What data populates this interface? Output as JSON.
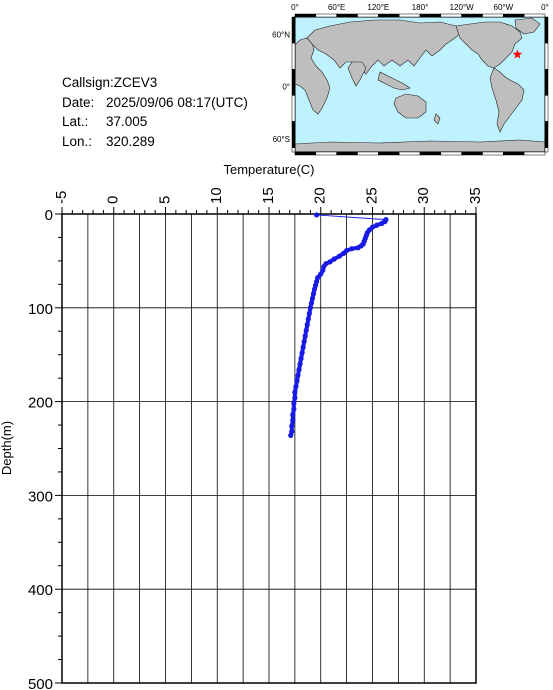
{
  "station": {
    "callsign_label": "Callsign:",
    "callsign": "ZCEV3",
    "date_label": "Date:",
    "date": "2025/09/06 08:17(UTC)",
    "lat_label": "Lat.:",
    "lat": "37.005",
    "lon_label": "Lon.:",
    "lon": "320.289"
  },
  "map": {
    "lon_labels": [
      "0°",
      "60°E",
      "120°E",
      "180°",
      "120°W",
      "60°W",
      "0°"
    ],
    "lat_labels": [
      "60°N",
      "0°",
      "60°S"
    ],
    "ocean_color": "#bff2ff",
    "land_color": "#bebebe",
    "marker_color": "#ff0000",
    "marker_icon": "star-icon",
    "marker_lon": 320.289,
    "marker_lat": 37.005
  },
  "chart_data": {
    "type": "line",
    "title": "",
    "xlabel": "Temperature(C)",
    "ylabel": "Depth(m)",
    "xlim": [
      -5,
      35
    ],
    "ylim": [
      0,
      500
    ],
    "y_inverted": true,
    "x_axis_position": "top",
    "x_ticks": [
      -5,
      0,
      5,
      10,
      15,
      20,
      25,
      30,
      35
    ],
    "y_ticks": [
      0,
      100,
      200,
      300,
      400,
      500
    ],
    "grid": true,
    "series_color": "#1a1ae6",
    "series": [
      {
        "name": "",
        "points": [
          [
            19.6,
            1
          ],
          [
            26.3,
            6
          ],
          [
            26.2,
            8
          ],
          [
            25.9,
            10
          ],
          [
            25.4,
            12
          ],
          [
            25.0,
            14
          ],
          [
            24.7,
            17
          ],
          [
            24.5,
            20
          ],
          [
            24.4,
            23
          ],
          [
            24.3,
            26
          ],
          [
            24.2,
            29
          ],
          [
            24.1,
            32
          ],
          [
            23.9,
            34
          ],
          [
            23.6,
            36
          ],
          [
            23.0,
            37
          ],
          [
            22.5,
            39
          ],
          [
            22.2,
            42
          ],
          [
            21.8,
            45
          ],
          [
            21.3,
            48
          ],
          [
            20.9,
            51
          ],
          [
            20.5,
            53
          ],
          [
            20.3,
            56
          ],
          [
            20.2,
            60
          ],
          [
            20.0,
            64
          ],
          [
            19.7,
            68
          ],
          [
            19.6,
            72
          ],
          [
            19.5,
            76
          ],
          [
            19.4,
            80
          ],
          [
            19.3,
            85
          ],
          [
            19.2,
            90
          ],
          [
            19.1,
            95
          ],
          [
            19.0,
            100
          ],
          [
            18.9,
            106
          ],
          [
            18.8,
            112
          ],
          [
            18.7,
            118
          ],
          [
            18.6,
            124
          ],
          [
            18.5,
            130
          ],
          [
            18.4,
            136
          ],
          [
            18.3,
            142
          ],
          [
            18.2,
            148
          ],
          [
            18.1,
            154
          ],
          [
            18.0,
            160
          ],
          [
            17.9,
            166
          ],
          [
            17.8,
            172
          ],
          [
            17.7,
            178
          ],
          [
            17.6,
            184
          ],
          [
            17.5,
            190
          ],
          [
            17.5,
            196
          ],
          [
            17.4,
            202
          ],
          [
            17.4,
            208
          ],
          [
            17.3,
            214
          ],
          [
            17.3,
            220
          ],
          [
            17.2,
            226
          ],
          [
            17.2,
            232
          ],
          [
            17.1,
            236
          ]
        ]
      }
    ]
  }
}
